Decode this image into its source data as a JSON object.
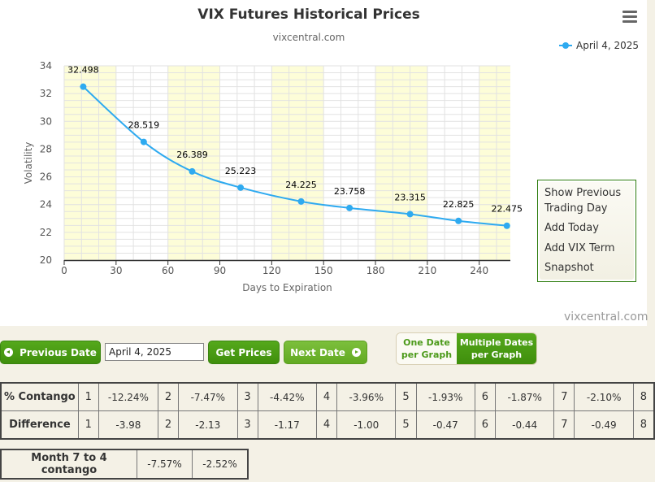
{
  "chart": {
    "title": "VIX Futures Historical Prices",
    "subtitle": "vixcentral.com",
    "credit": "vixcentral.com",
    "menu_icon": "hamburger-menu-icon",
    "legend": {
      "label": "April 4, 2025",
      "color": "#2eaaf0"
    }
  },
  "chart_data": {
    "type": "line",
    "title": "VIX Futures Historical Prices",
    "subtitle": "vixcentral.com",
    "xlabel": "Days to Expiration",
    "ylabel": "Volatility",
    "xlim": [
      0,
      258
    ],
    "ylim": [
      20,
      34
    ],
    "x_ticks": [
      0,
      30,
      60,
      90,
      120,
      150,
      180,
      210,
      240
    ],
    "y_ticks": [
      20,
      22,
      24,
      26,
      28,
      30,
      32,
      34
    ],
    "grid": true,
    "alternate_bands": [
      [
        0,
        30
      ],
      [
        60,
        90
      ],
      [
        120,
        150
      ],
      [
        180,
        210
      ],
      [
        240,
        258
      ]
    ],
    "legend_position": "top-right",
    "series": [
      {
        "name": "April 4, 2025",
        "color": "#2eaaf0",
        "x": [
          11,
          46,
          74,
          102,
          137,
          165,
          200,
          228,
          256
        ],
        "values": [
          32.498,
          28.519,
          26.389,
          25.223,
          24.225,
          23.758,
          23.315,
          22.825,
          22.475
        ],
        "labels": [
          "32.498",
          "28.519",
          "26.389",
          "25.223",
          "24.225",
          "23.758",
          "23.315",
          "22.825",
          "22.475"
        ]
      }
    ]
  },
  "options_menu": {
    "items": [
      "Show Previous",
      "Trading Day",
      "Add Today",
      "Add VIX Term",
      "Snapshot"
    ]
  },
  "controls": {
    "previous_date": "Previous Date",
    "date_value": "April 4, 2025",
    "get_prices": "Get Prices",
    "next_date": "Next Date",
    "toggle": {
      "one_date_line1": "One Date",
      "one_date_line2": "per Graph",
      "multi_line1": "Multiple Dates",
      "multi_line2": "per Graph",
      "selected": "multiple"
    }
  },
  "contango_table": {
    "rows": [
      {
        "label": "% Contango",
        "cells": [
          [
            "1",
            "-12.24%"
          ],
          [
            "2",
            "-7.47%"
          ],
          [
            "3",
            "-4.42%"
          ],
          [
            "4",
            "-3.96%"
          ],
          [
            "5",
            "-1.93%"
          ],
          [
            "6",
            "-1.87%"
          ],
          [
            "7",
            "-2.10%"
          ],
          [
            "8",
            ""
          ]
        ]
      },
      {
        "label": "Difference",
        "cells": [
          [
            "1",
            "-3.98"
          ],
          [
            "2",
            "-2.13"
          ],
          [
            "3",
            "-1.17"
          ],
          [
            "4",
            "-1.00"
          ],
          [
            "5",
            "-0.47"
          ],
          [
            "6",
            "-0.44"
          ],
          [
            "7",
            "-0.49"
          ],
          [
            "8",
            ""
          ]
        ]
      }
    ]
  },
  "summary_table": {
    "label": "Month 7 to 4 contango",
    "values": [
      "-7.57%",
      "-2.52%"
    ]
  }
}
